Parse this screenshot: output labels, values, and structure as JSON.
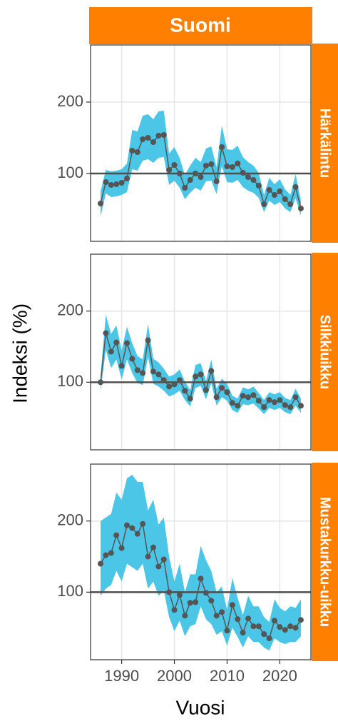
{
  "strip_title": "Suomi",
  "xlabel": "Vuosi",
  "ylabel": "Indeksi (%)",
  "chart_data": [
    {
      "type": "line",
      "title": "Härkälintu",
      "x": [
        1986,
        1987,
        1988,
        1989,
        1990,
        1991,
        1992,
        1993,
        1994,
        1995,
        1996,
        1997,
        1998,
        1999,
        2000,
        2001,
        2002,
        2003,
        2004,
        2005,
        2006,
        2007,
        2008,
        2009,
        2010,
        2011,
        2012,
        2013,
        2014,
        2015,
        2016,
        2017,
        2018,
        2019,
        2020,
        2021,
        2022,
        2023,
        2024
      ],
      "series": [
        {
          "color": "#555555",
          "band_color": "#4cc6e6",
          "values": [
            58,
            88,
            84,
            85,
            87,
            93,
            132,
            130,
            148,
            150,
            144,
            153,
            154,
            105,
            112,
            100,
            80,
            91,
            100,
            95,
            111,
            113,
            89,
            137,
            110,
            109,
            114,
            101,
            95,
            91,
            83,
            57,
            77,
            70,
            75,
            64,
            57,
            81,
            51
          ],
          "upper": [
            75,
            105,
            103,
            104,
            106,
            114,
            161,
            159,
            181,
            183,
            176,
            187,
            188,
            128,
            137,
            122,
            98,
            111,
            122,
            116,
            135,
            138,
            109,
            167,
            134,
            133,
            139,
            123,
            116,
            111,
            101,
            70,
            94,
            85,
            92,
            78,
            70,
            99,
            62
          ],
          "lower": [
            40,
            72,
            67,
            68,
            70,
            74,
            106,
            104,
            118,
            120,
            115,
            122,
            123,
            84,
            90,
            80,
            64,
            73,
            80,
            76,
            89,
            90,
            71,
            110,
            88,
            87,
            91,
            81,
            76,
            73,
            66,
            46,
            62,
            56,
            60,
            51,
            46,
            65,
            41
          ]
        }
      ],
      "xlim": [
        1984.1,
        2025.9
      ],
      "xticks": [
        1990,
        2000,
        2010,
        2020
      ],
      "ylim": [
        5,
        280
      ],
      "yticks": [
        100,
        200
      ],
      "reference_line": 100,
      "grid": true
    },
    {
      "type": "line",
      "title": "Silkkiuikku",
      "x": [
        1986,
        1987,
        1988,
        1989,
        1990,
        1991,
        1992,
        1993,
        1994,
        1995,
        1996,
        1997,
        1998,
        1999,
        2000,
        2001,
        2002,
        2003,
        2004,
        2005,
        2006,
        2007,
        2008,
        2009,
        2010,
        2011,
        2012,
        2013,
        2014,
        2015,
        2016,
        2017,
        2018,
        2019,
        2020,
        2021,
        2022,
        2023,
        2024
      ],
      "series": [
        {
          "color": "#555555",
          "band_color": "#4cc6e6",
          "values": [
            100,
            169,
            143,
            156,
            123,
            155,
            133,
            117,
            113,
            159,
            115,
            111,
            103,
            94,
            97,
            103,
            88,
            77,
            108,
            111,
            89,
            116,
            79,
            92,
            86,
            71,
            67,
            81,
            79,
            82,
            74,
            65,
            75,
            72,
            75,
            68,
            65,
            79,
            67
          ],
          "upper": [
            110,
            195,
            168,
            180,
            145,
            178,
            155,
            137,
            132,
            182,
            133,
            128,
            119,
            108,
            111,
            118,
            101,
            89,
            124,
            127,
            102,
            132,
            91,
            105,
            98,
            81,
            77,
            93,
            90,
            94,
            85,
            75,
            86,
            83,
            86,
            78,
            75,
            91,
            77
          ],
          "lower": [
            88,
            145,
            120,
            132,
            104,
            132,
            113,
            99,
            96,
            136,
            98,
            94,
            88,
            80,
            83,
            88,
            75,
            66,
            92,
            95,
            76,
            99,
            67,
            79,
            74,
            61,
            57,
            69,
            68,
            70,
            63,
            55,
            64,
            61,
            64,
            58,
            55,
            67,
            57
          ]
        }
      ],
      "xlim": [
        1984.1,
        2025.9
      ],
      "xticks": [
        1990,
        2000,
        2010,
        2020
      ],
      "ylim": [
        5,
        280
      ],
      "yticks": [
        100,
        200
      ],
      "reference_line": 100,
      "grid": true
    },
    {
      "type": "line",
      "title": "Mustakurkku-uikku",
      "x": [
        1986,
        1987,
        1988,
        1989,
        1990,
        1991,
        1992,
        1993,
        1994,
        1995,
        1996,
        1997,
        1998,
        1999,
        2000,
        2001,
        2002,
        2003,
        2004,
        2005,
        2006,
        2007,
        2008,
        2009,
        2010,
        2011,
        2012,
        2013,
        2014,
        2015,
        2016,
        2017,
        2018,
        2019,
        2020,
        2021,
        2022,
        2023,
        2024
      ],
      "series": [
        {
          "color": "#555555",
          "band_color": "#4cc6e6",
          "values": [
            140,
            152,
            155,
            180,
            162,
            194,
            190,
            182,
            196,
            150,
            163,
            136,
            146,
            100,
            75,
            96,
            67,
            85,
            86,
            119,
            99,
            88,
            67,
            72,
            46,
            82,
            62,
            43,
            63,
            52,
            52,
            41,
            35,
            60,
            51,
            47,
            52,
            50,
            61
          ],
          "upper": [
            200,
            205,
            210,
            240,
            230,
            260,
            265,
            255,
            255,
            215,
            230,
            195,
            205,
            150,
            115,
            140,
            100,
            125,
            125,
            165,
            145,
            130,
            100,
            108,
            75,
            120,
            92,
            68,
            95,
            80,
            80,
            65,
            58,
            90,
            78,
            73,
            80,
            78,
            90
          ],
          "lower": [
            95,
            105,
            110,
            130,
            115,
            140,
            135,
            130,
            140,
            105,
            115,
            95,
            102,
            65,
            45,
            60,
            38,
            52,
            55,
            80,
            62,
            55,
            40,
            45,
            25,
            50,
            37,
            22,
            38,
            30,
            30,
            22,
            18,
            35,
            30,
            27,
            30,
            30,
            38
          ]
        }
      ],
      "xlim": [
        1984.1,
        2025.9
      ],
      "xticks": [
        1990,
        2000,
        2010,
        2020
      ],
      "ylim": [
        5,
        280
      ],
      "yticks": [
        100,
        200
      ],
      "reference_line": 100,
      "grid": true
    }
  ]
}
